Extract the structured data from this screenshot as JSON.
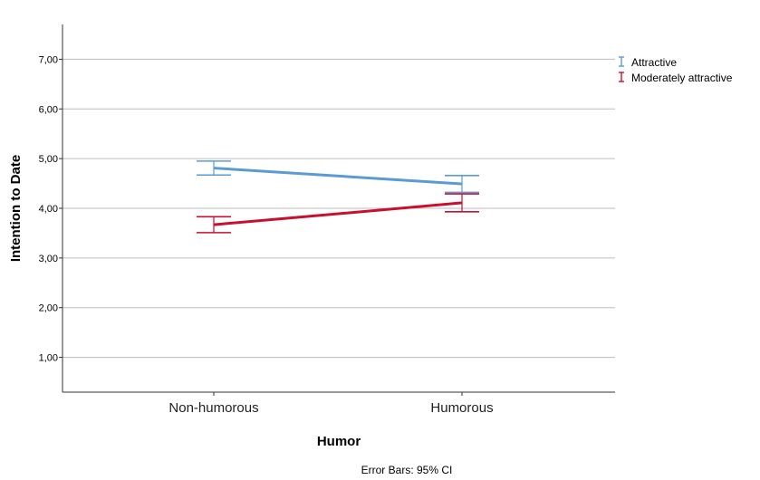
{
  "chart_data": {
    "type": "line",
    "xlabel": "Humor",
    "ylabel": "Intention to Date",
    "categories": [
      "Non-humorous",
      "Humorous"
    ],
    "ylim": [
      0.3,
      7.7
    ],
    "yticks": [
      "1,00",
      "2,00",
      "3,00",
      "4,00",
      "5,00",
      "6,00",
      "7,00"
    ],
    "grid": true,
    "legend_position": "top-right",
    "footnote": "Error Bars: 95% CI",
    "series": [
      {
        "name": "Attractive",
        "color": "#5b9bd5",
        "values": [
          4.81,
          4.49
        ],
        "ci_low": [
          4.67,
          4.32
        ],
        "ci_high": [
          4.95,
          4.66
        ]
      },
      {
        "name": "Moderately attractive",
        "color": "#c8102e",
        "values": [
          3.67,
          4.11
        ],
        "ci_low": [
          3.51,
          3.93
        ],
        "ci_high": [
          3.83,
          4.29
        ]
      }
    ]
  }
}
